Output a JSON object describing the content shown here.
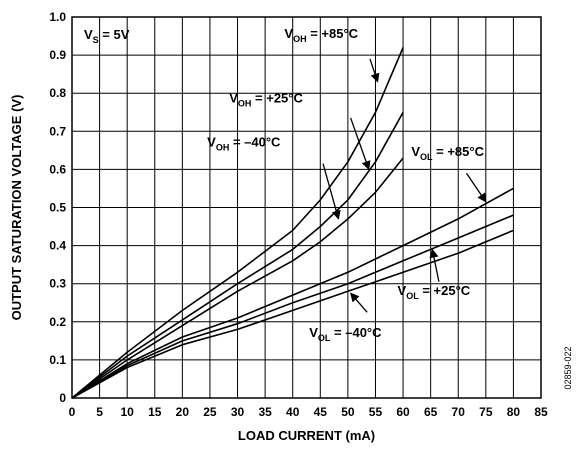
{
  "chart_data": {
    "type": "line",
    "xlabel": "LOAD CURRENT (mA)",
    "ylabel": "OUTPUT SATURATION VOLTAGE (V)",
    "xlim": [
      0,
      85
    ],
    "ylim": [
      0,
      1.0
    ],
    "grid": true,
    "legend": "none",
    "x_ticks": [
      0,
      5,
      10,
      15,
      20,
      25,
      30,
      35,
      40,
      45,
      50,
      55,
      60,
      65,
      70,
      75,
      80,
      85
    ],
    "y_ticks": [
      0,
      0.1,
      0.2,
      0.3,
      0.4,
      0.5,
      0.6,
      0.7,
      0.8,
      0.9,
      1.0
    ],
    "x_tick_labels": [
      "0",
      "5",
      "10",
      "15",
      "20",
      "25",
      "30",
      "35",
      "40",
      "45",
      "50",
      "55",
      "60",
      "65",
      "70",
      "75",
      "80",
      "85"
    ],
    "y_tick_labels": [
      "0",
      "0.1",
      "0.2",
      "0.3",
      "0.4",
      "0.5",
      "0.6",
      "0.7",
      "0.8",
      "0.9",
      "1.0"
    ],
    "supply_label": {
      "main": "V",
      "sub": "S",
      "rest": " = 5V"
    },
    "figure_number": "02859-022",
    "series": [
      {
        "name": "VOH = +85°C",
        "x": [
          0,
          5,
          10,
          20,
          30,
          40,
          45,
          50,
          55,
          60
        ],
        "y": [
          0,
          0.06,
          0.12,
          0.23,
          0.33,
          0.44,
          0.52,
          0.62,
          0.75,
          0.92
        ]
      },
      {
        "name": "VOH = +25°C",
        "x": [
          0,
          5,
          10,
          20,
          30,
          40,
          45,
          50,
          55,
          60
        ],
        "y": [
          0,
          0.055,
          0.11,
          0.205,
          0.3,
          0.39,
          0.45,
          0.52,
          0.62,
          0.75
        ]
      },
      {
        "name": "VOH = –40°C",
        "x": [
          0,
          5,
          10,
          20,
          30,
          40,
          45,
          50,
          55,
          60
        ],
        "y": [
          0,
          0.05,
          0.1,
          0.19,
          0.28,
          0.36,
          0.41,
          0.47,
          0.54,
          0.63
        ]
      },
      {
        "name": "VOL = +85°C",
        "x": [
          0,
          10,
          20,
          30,
          40,
          50,
          60,
          70,
          80
        ],
        "y": [
          0,
          0.09,
          0.16,
          0.21,
          0.27,
          0.33,
          0.4,
          0.47,
          0.55
        ]
      },
      {
        "name": "VOL = +25°C",
        "x": [
          0,
          10,
          20,
          30,
          40,
          50,
          60,
          70,
          80
        ],
        "y": [
          0,
          0.085,
          0.15,
          0.195,
          0.25,
          0.3,
          0.36,
          0.42,
          0.48
        ]
      },
      {
        "name": "VOL = –40°C",
        "x": [
          0,
          10,
          20,
          30,
          40,
          50,
          60,
          70,
          80
        ],
        "y": [
          0,
          0.08,
          0.14,
          0.18,
          0.23,
          0.28,
          0.33,
          0.38,
          0.44
        ]
      }
    ],
    "annotations": [
      {
        "series": 0,
        "main": "V",
        "sub": "OH",
        "rest": " = +85°C",
        "label_at": [
          38.5,
          0.945
        ],
        "arrow_from": [
          54,
          0.89
        ],
        "arrow_to": [
          55.4,
          0.83
        ]
      },
      {
        "series": 1,
        "main": "V",
        "sub": "OH",
        "rest": " = +25°C",
        "label_at": [
          28.5,
          0.775
        ],
        "arrow_from": [
          50.5,
          0.735
        ],
        "arrow_to": [
          53.8,
          0.6
        ]
      },
      {
        "series": 2,
        "main": "V",
        "sub": "OH",
        "rest": " = –40°C",
        "label_at": [
          24.5,
          0.66
        ],
        "arrow_from": [
          45.5,
          0.615
        ],
        "arrow_to": [
          48.3,
          0.47
        ]
      },
      {
        "series": 3,
        "main": "V",
        "sub": "OL",
        "rest": " = +85°C",
        "label_at": [
          61.5,
          0.635
        ],
        "arrow_from": [
          71.5,
          0.59
        ],
        "arrow_to": [
          75,
          0.515
        ]
      },
      {
        "series": 4,
        "main": "V",
        "sub": "OL",
        "rest": " = +25°C",
        "label_at": [
          59,
          0.27
        ],
        "arrow_from": [
          66.5,
          0.305
        ],
        "arrow_to": [
          65.3,
          0.39
        ]
      },
      {
        "series": 5,
        "main": "V",
        "sub": "OL",
        "rest": " = –40°C",
        "label_at": [
          43,
          0.16
        ],
        "arrow_from": [
          53.5,
          0.225
        ],
        "arrow_to": [
          50.5,
          0.275
        ]
      }
    ]
  }
}
